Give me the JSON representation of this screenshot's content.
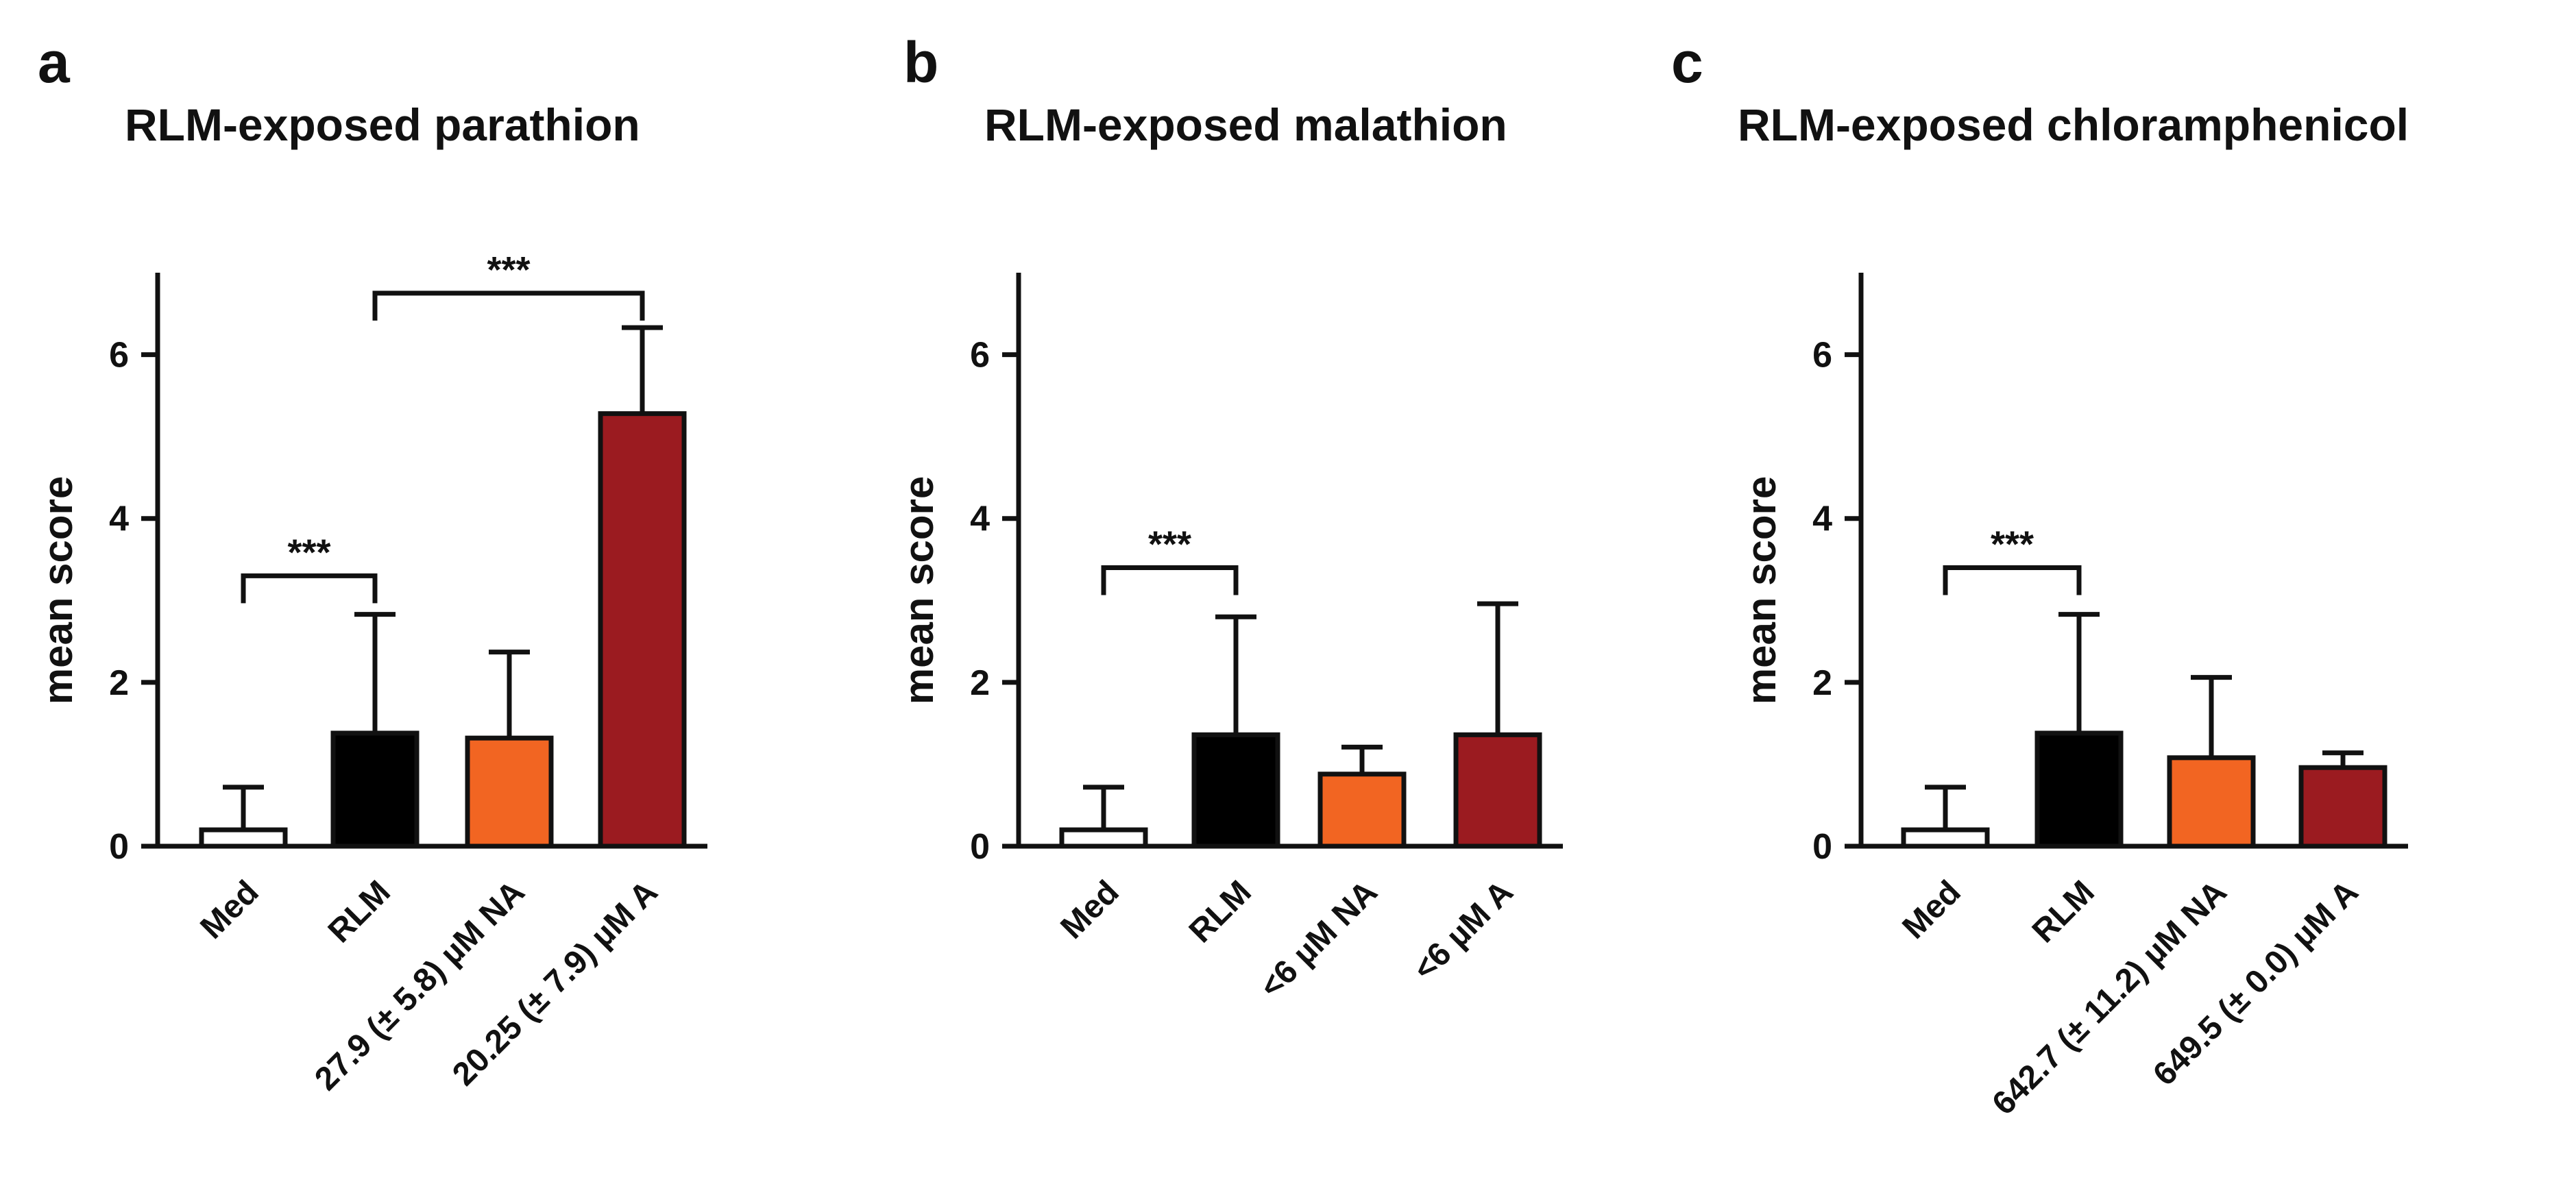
{
  "chart_data": [
    {
      "type": "bar",
      "panel": "a",
      "title": "RLM-exposed parathion",
      "xlabel": "",
      "ylabel": "mean score",
      "ylim": [
        0,
        7
      ],
      "yticks": [
        0,
        2,
        4,
        6
      ],
      "categories": [
        "Med",
        "RLM",
        "27.9 (± 5.8) µM NA",
        "20.25 (± 7.9) µM A"
      ],
      "values": [
        0.2,
        1.38,
        1.32,
        5.28
      ],
      "errors": [
        0.52,
        1.45,
        1.05,
        1.05
      ],
      "colors": [
        "#ffffff",
        "#000000",
        "#f26522",
        "#9b1b20"
      ],
      "significance": [
        {
          "from": 0,
          "to": 1,
          "label": "***",
          "y": 3.3
        },
        {
          "from": 1,
          "to": 3,
          "label": "***",
          "y": 6.75
        }
      ]
    },
    {
      "type": "bar",
      "panel": "b",
      "title": "RLM-exposed malathion",
      "xlabel": "",
      "ylabel": "mean score",
      "ylim": [
        0,
        7
      ],
      "yticks": [
        0,
        2,
        4,
        6
      ],
      "categories": [
        "Med",
        "RLM",
        "<6 µM NA",
        "<6 µM A"
      ],
      "values": [
        0.2,
        1.36,
        0.88,
        1.36
      ],
      "errors": [
        0.52,
        1.44,
        0.33,
        1.6
      ],
      "colors": [
        "#ffffff",
        "#000000",
        "#f26522",
        "#9b1b20"
      ],
      "significance": [
        {
          "from": 0,
          "to": 1,
          "label": "***",
          "y": 3.4
        }
      ]
    },
    {
      "type": "bar",
      "panel": "c",
      "title": "RLM-exposed chloramphenicol",
      "xlabel": "",
      "ylabel": "mean score",
      "ylim": [
        0,
        7
      ],
      "yticks": [
        0,
        2,
        4,
        6
      ],
      "categories": [
        "Med",
        "RLM",
        "642.7 (± 11.2) µM NA",
        "649.5 (± 0.0) µM A"
      ],
      "values": [
        0.2,
        1.38,
        1.08,
        0.96
      ],
      "errors": [
        0.52,
        1.45,
        0.98,
        0.18
      ],
      "colors": [
        "#ffffff",
        "#000000",
        "#f26522",
        "#9b1b20"
      ],
      "significance": [
        {
          "from": 0,
          "to": 1,
          "label": "***",
          "y": 3.4
        }
      ]
    }
  ]
}
